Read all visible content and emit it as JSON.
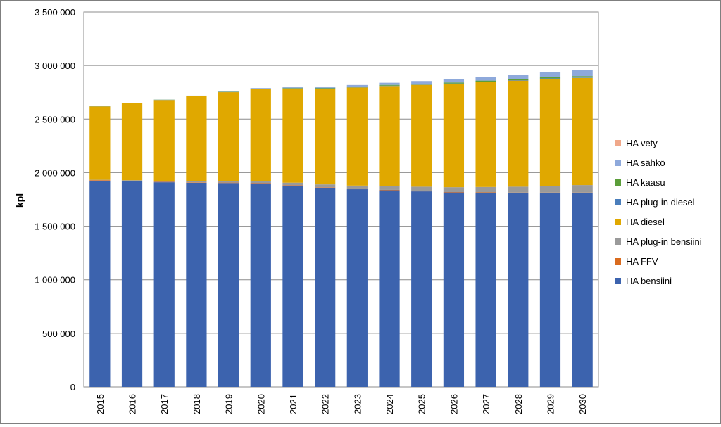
{
  "chart_data": {
    "type": "bar",
    "stacked": true,
    "title": "",
    "xlabel": "",
    "ylabel": "kpl",
    "ylim": [
      0,
      3500000
    ],
    "yticks": [
      0,
      500000,
      1000000,
      1500000,
      2000000,
      2500000,
      3000000,
      3500000
    ],
    "ytick_labels": [
      "0",
      "500 000",
      "1 000 000",
      "1 500 000",
      "2 000 000",
      "2 500 000",
      "3 000 000",
      "3 500 000"
    ],
    "grid": "horizontal",
    "legend_position": "right",
    "categories": [
      "2015",
      "2016",
      "2017",
      "2018",
      "2019",
      "2020",
      "2021",
      "2022",
      "2023",
      "2024",
      "2025",
      "2026",
      "2027",
      "2028",
      "2029",
      "2030"
    ],
    "series": [
      {
        "name": "HA bensiini",
        "color": "#3C63AE",
        "values": [
          1925000,
          1920000,
          1910000,
          1905000,
          1903000,
          1900000,
          1880000,
          1860000,
          1845000,
          1835000,
          1825000,
          1815000,
          1812000,
          1810000,
          1810000,
          1810000
        ]
      },
      {
        "name": "HA FFV",
        "color": "#D96B1E",
        "values": [
          5000,
          4000,
          4000,
          4000,
          4000,
          4000,
          4000,
          4000,
          4000,
          4000,
          4000,
          4000,
          4000,
          4000,
          4000,
          4000
        ]
      },
      {
        "name": "HA plug-in bensiini",
        "color": "#9A9A9A",
        "values": [
          3000,
          5000,
          8000,
          10000,
          14000,
          18000,
          22000,
          26000,
          30000,
          35000,
          40000,
          45000,
          50000,
          55000,
          62000,
          70000
        ]
      },
      {
        "name": "HA diesel",
        "color": "#E0A800",
        "values": [
          685000,
          718000,
          756000,
          795000,
          830000,
          858000,
          880000,
          895000,
          915000,
          935000,
          950000,
          965000,
          980000,
          990000,
          1000000,
          1000000
        ]
      },
      {
        "name": "HA plug-in diesel",
        "color": "#4A7EBB",
        "values": [
          1000,
          1000,
          1000,
          1000,
          2000,
          2000,
          2000,
          2000,
          2000,
          3000,
          3000,
          3000,
          3000,
          4000,
          4000,
          4000
        ]
      },
      {
        "name": "HA kaasu",
        "color": "#5B9E3A",
        "values": [
          1000,
          1000,
          2000,
          2000,
          3000,
          3000,
          4000,
          5000,
          6000,
          7000,
          8000,
          9000,
          10000,
          10000,
          12000,
          13000
        ]
      },
      {
        "name": "HA sähkö",
        "color": "#8EA9DB",
        "values": [
          1000,
          1000,
          1000,
          2000,
          3000,
          5000,
          8000,
          12000,
          16000,
          20000,
          25000,
          30000,
          35000,
          42000,
          48000,
          55000
        ]
      },
      {
        "name": "HA vety",
        "color": "#F0A88A",
        "values": [
          0,
          0,
          0,
          0,
          0,
          0,
          0,
          0,
          0,
          0,
          0,
          0,
          0,
          0,
          0,
          1000
        ]
      }
    ]
  }
}
